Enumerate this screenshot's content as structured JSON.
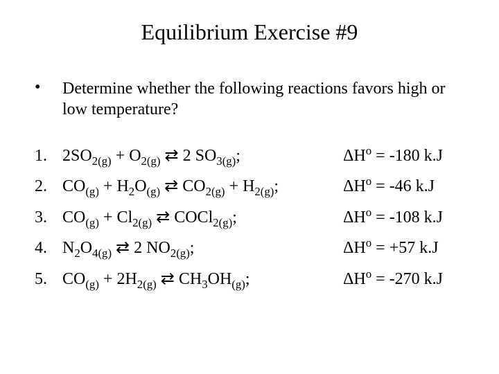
{
  "colors": {
    "background": "#ffffff",
    "text": "#000000"
  },
  "title": "Equilibrium Exercise #9",
  "bullet": "•",
  "question": "Determine whether the following reactions favors high or low temperature?",
  "items": [
    {
      "num": "1.",
      "reaction": "2SO<sub>2(g)</sub> + O<sub>2(g)</sub> <span class='arrow'>⇄</span>  2 SO<sub>3(g)</sub>;",
      "dH": "ΔH<span class='super-o'>o</span> = -180 k.J"
    },
    {
      "num": "2.",
      "reaction": "CO<sub>(g)</sub> + H<sub>2</sub>O<sub>(g)</sub> <span class='arrow'>⇄</span> CO<sub>2(g)</sub> + H<sub>2(g)</sub>;",
      "dH": "ΔH<span class='super-o'>o</span> = -46 k.J"
    },
    {
      "num": "3.",
      "reaction": "CO<sub>(g)</sub> + Cl<sub>2(g)</sub> <span class='arrow'>⇄</span> COCl<sub>2(g)</sub>;",
      "dH": "ΔH<span class='super-o'>o</span> = -108 k.J"
    },
    {
      "num": "4.",
      "reaction": "N<sub>2</sub>O<sub>4(g)</sub> <span class='arrow'>⇄</span> 2 NO<sub>2(g)</sub>;",
      "dH": "ΔH<span class='super-o'>o</span> = +57 k.J"
    },
    {
      "num": "5.",
      "reaction": "CO<sub>(g)</sub> + 2H<sub>2(g)</sub> <span class='arrow'>⇄</span> CH<sub>3</sub>OH<sub>(g)</sub>;",
      "dH": "ΔH<span class='super-o'>o</span> = -270 k.J"
    }
  ]
}
